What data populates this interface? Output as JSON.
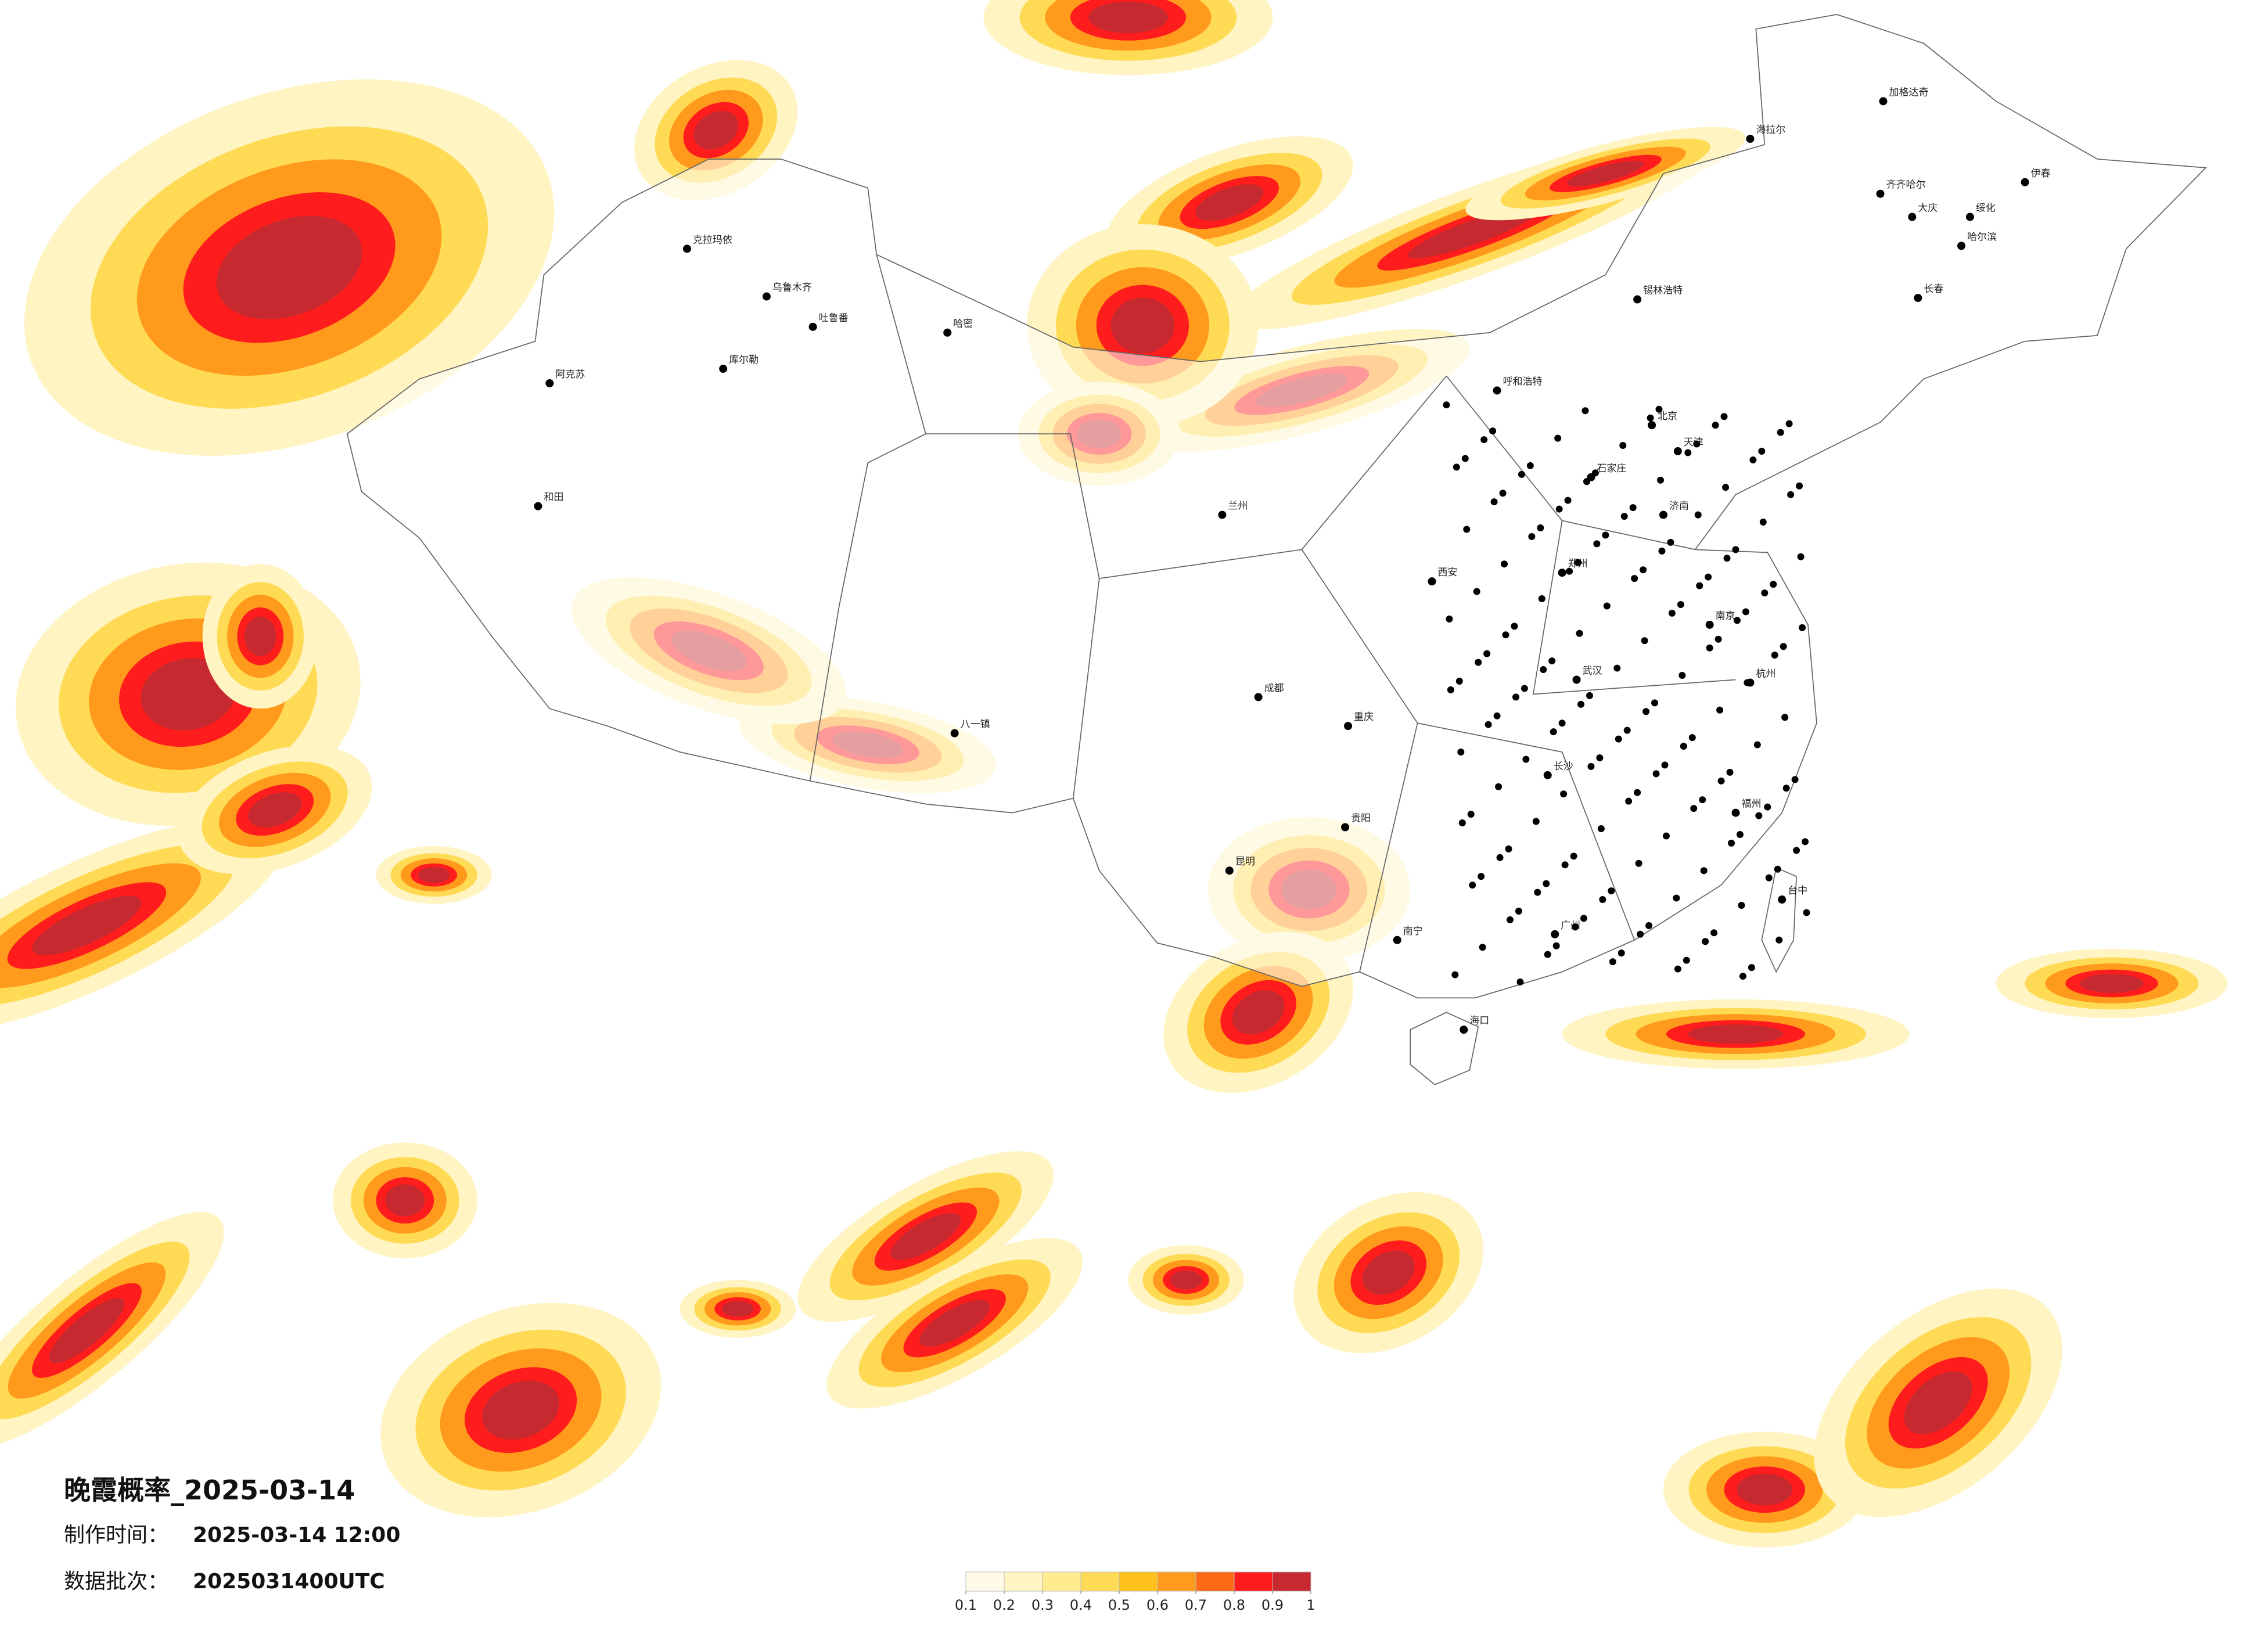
{
  "title": "晚霞概率_2025-03-14",
  "production_time": {
    "label": "制作时间：",
    "value": "2025-03-14 12:00"
  },
  "batch": {
    "label": "数据批次：",
    "value": "2025031400UTC"
  },
  "legend": {
    "ticks": [
      0.1,
      0.2,
      0.3,
      0.4,
      0.5,
      0.6,
      0.7,
      0.8,
      0.9,
      1
    ],
    "colors": [
      "#fffbe8",
      "#fff4c2",
      "#ffec8e",
      "#ffdb55",
      "#ffc21c",
      "#ff9a1c",
      "#ff6a14",
      "#ff1c1c",
      "#c62a30"
    ]
  },
  "cities": [
    "克拉玛依",
    "乌鲁木齐",
    "吐鲁番",
    "哈密",
    "库尔勒",
    "阿克苏",
    "和田",
    "八一镇",
    "锡林浩特",
    "呼和浩特",
    "北京",
    "天津",
    "石家庄",
    "济南",
    "郑州",
    "西安",
    "兰州",
    "成都",
    "重庆",
    "武汉",
    "长沙",
    "南京",
    "杭州",
    "福州",
    "广州",
    "南宁",
    "昆明",
    "贵阳",
    "哈尔滨",
    "长春",
    "齐齐哈尔",
    "海拉尔",
    "伊春",
    "加格达奇",
    "大庆",
    "绥化",
    "海口",
    "台中"
  ]
}
